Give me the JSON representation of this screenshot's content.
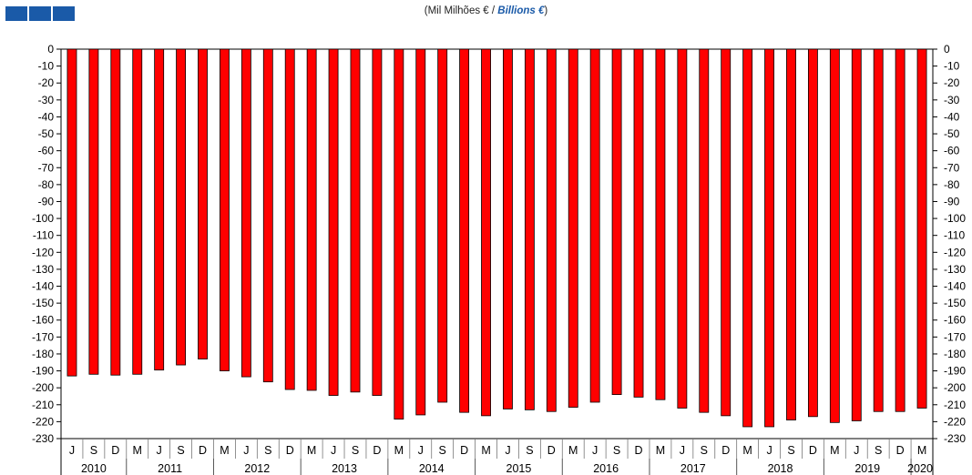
{
  "header": {
    "title_pt": "(Mil Milhões € / ",
    "title_en": "Billions €",
    "title_close": ")"
  },
  "colors": {
    "bar": "#ff0000",
    "bar_outline": "#000000",
    "logo": "#1a5aa8",
    "title_en": "#1a5aa8"
  },
  "chart_data": {
    "type": "bar",
    "title": "(Mil Milhões € / Billions €)",
    "ylim": [
      -230,
      0
    ],
    "y_ticks": [
      0,
      -10,
      -20,
      -30,
      -40,
      -50,
      -60,
      -70,
      -80,
      -90,
      -100,
      -110,
      -120,
      -130,
      -140,
      -150,
      -160,
      -170,
      -180,
      -190,
      -200,
      -210,
      -220,
      -230
    ],
    "grid": false,
    "legend": "none",
    "categories": [
      "J",
      "S",
      "D",
      "M",
      "J",
      "S",
      "D",
      "M",
      "J",
      "S",
      "D",
      "M",
      "J",
      "S",
      "D",
      "M",
      "J",
      "S",
      "D",
      "M",
      "J",
      "S",
      "D",
      "M",
      "J",
      "S",
      "D",
      "M",
      "J",
      "S",
      "D",
      "M",
      "J",
      "S",
      "D",
      "M",
      "J",
      "S",
      "D",
      "M"
    ],
    "years": [
      {
        "label": "2010",
        "start": 0,
        "count": 3
      },
      {
        "label": "2011",
        "start": 3,
        "count": 4
      },
      {
        "label": "2012",
        "start": 7,
        "count": 4
      },
      {
        "label": "2013",
        "start": 11,
        "count": 4
      },
      {
        "label": "2014",
        "start": 15,
        "count": 4
      },
      {
        "label": "2015",
        "start": 19,
        "count": 4
      },
      {
        "label": "2016",
        "start": 23,
        "count": 4
      },
      {
        "label": "2017",
        "start": 27,
        "count": 4
      },
      {
        "label": "2018",
        "start": 31,
        "count": 4
      },
      {
        "label": "2019",
        "start": 35,
        "count": 4
      },
      {
        "label": "2020",
        "start": 39,
        "count": 1
      }
    ],
    "values": [
      -193,
      -192,
      -192.5,
      -192,
      -189.5,
      -186.5,
      -183,
      -190,
      -193.5,
      -196.5,
      -201,
      -201.5,
      -204.5,
      -202.5,
      -204.5,
      -218.5,
      -216,
      -208.5,
      -214.5,
      -216.5,
      -212.5,
      -213,
      -214,
      -211.5,
      -208.5,
      -204,
      -205.5,
      -207,
      -212,
      -214.5,
      -216.5,
      -223,
      -223,
      -219,
      -217,
      -220.5,
      -219.5,
      -214,
      -214,
      -212
    ]
  }
}
